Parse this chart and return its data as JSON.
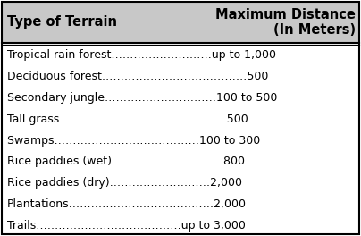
{
  "header_col1": "Type of Terrain",
  "header_col2": "Maximum Distance\n(In Meters)",
  "full_rows": [
    "Tropical rain forest………………………up to 1,000",
    "Deciduous forest…………………………………500",
    "Secondary jungle…………………………100 to 500",
    "Tall grass………………………………………500",
    "Swamps…………………………………100 to 300",
    "Rice paddies (wet)…………………………800",
    "Rice paddies (dry)………………………2,000",
    "Plantations…………………………………2,000",
    "Trails…………………………………up to 3,000"
  ],
  "bg_color": "#ffffff",
  "border_color": "#000000",
  "header_bg": "#c8c8c8",
  "font_size_header": 10.5,
  "font_size_body": 9.0,
  "figwidth": 4.04,
  "figheight": 2.64,
  "dpi": 100
}
